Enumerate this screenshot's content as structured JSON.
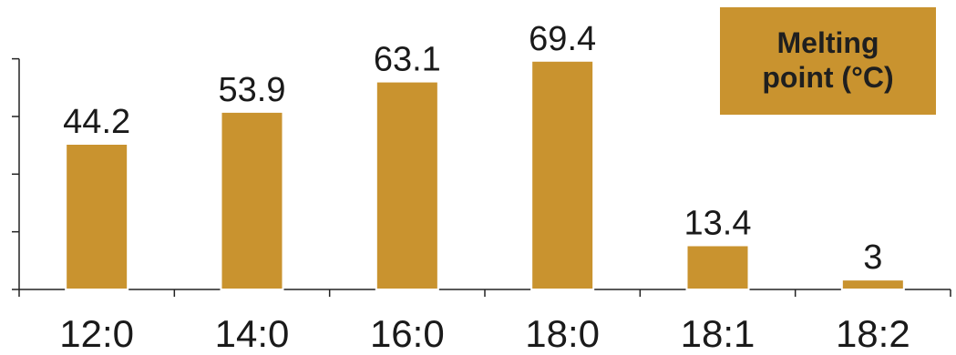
{
  "chart_data": {
    "type": "bar",
    "categories": [
      "12:0",
      "14:0",
      "16:0",
      "18:0",
      "18:1",
      "18:2"
    ],
    "series": [
      {
        "name": "Melting point (°C)",
        "values": [
          44.2,
          53.9,
          63.1,
          69.4,
          13.4,
          3
        ]
      }
    ],
    "data_labels": [
      "44.2",
      "53.9",
      "63.1",
      "69.4",
      "13.4",
      "3"
    ],
    "title": "",
    "xlabel": "",
    "ylabel": "",
    "ylim": [
      0,
      70
    ],
    "grid": false,
    "legend": {
      "text": "Melting\npoint (°C)",
      "placement": "top-right"
    },
    "colors": {
      "bar": "#c9932f",
      "bar_edge": "#ffffff",
      "axis": "#222222",
      "text": "#1a1a1a",
      "legend_bg": "#c9932f"
    }
  }
}
